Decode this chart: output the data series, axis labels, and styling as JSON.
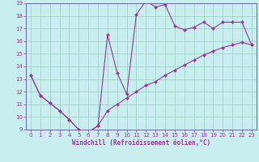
{
  "xlabel": "Windchill (Refroidissement éolien,°C)",
  "background_color": "#c8eef0",
  "line_color": "#993399",
  "grid_color": "#99ccbb",
  "spine_color": "#6666aa",
  "xlim": [
    -0.5,
    23.5
  ],
  "ylim": [
    9,
    19
  ],
  "xticks": [
    0,
    1,
    2,
    3,
    4,
    5,
    6,
    7,
    8,
    9,
    10,
    11,
    12,
    13,
    14,
    15,
    16,
    17,
    18,
    19,
    20,
    21,
    22,
    23
  ],
  "yticks": [
    9,
    10,
    11,
    12,
    13,
    14,
    15,
    16,
    17,
    18,
    19
  ],
  "series1_x": [
    0,
    1,
    2,
    3,
    4,
    5,
    6,
    7,
    8,
    9,
    10,
    11,
    12,
    13,
    14,
    15,
    16,
    17,
    18,
    19,
    20,
    21,
    22,
    23
  ],
  "series1_y": [
    13.3,
    11.7,
    11.1,
    10.5,
    9.8,
    9.0,
    8.8,
    9.3,
    16.5,
    13.5,
    11.8,
    18.1,
    19.2,
    18.7,
    18.9,
    17.2,
    16.9,
    17.1,
    17.5,
    17.0,
    17.5,
    17.5,
    17.5,
    15.7
  ],
  "series2_x": [
    0,
    1,
    2,
    3,
    4,
    5,
    6,
    7,
    8,
    9,
    10,
    11,
    12,
    13,
    14,
    15,
    16,
    17,
    18,
    19,
    20,
    21,
    22,
    23
  ],
  "series2_y": [
    13.3,
    11.7,
    11.1,
    10.5,
    9.8,
    9.0,
    8.8,
    9.3,
    10.5,
    11.0,
    11.5,
    12.0,
    12.5,
    12.8,
    13.3,
    13.7,
    14.1,
    14.5,
    14.9,
    15.2,
    15.5,
    15.7,
    15.9,
    15.7
  ]
}
